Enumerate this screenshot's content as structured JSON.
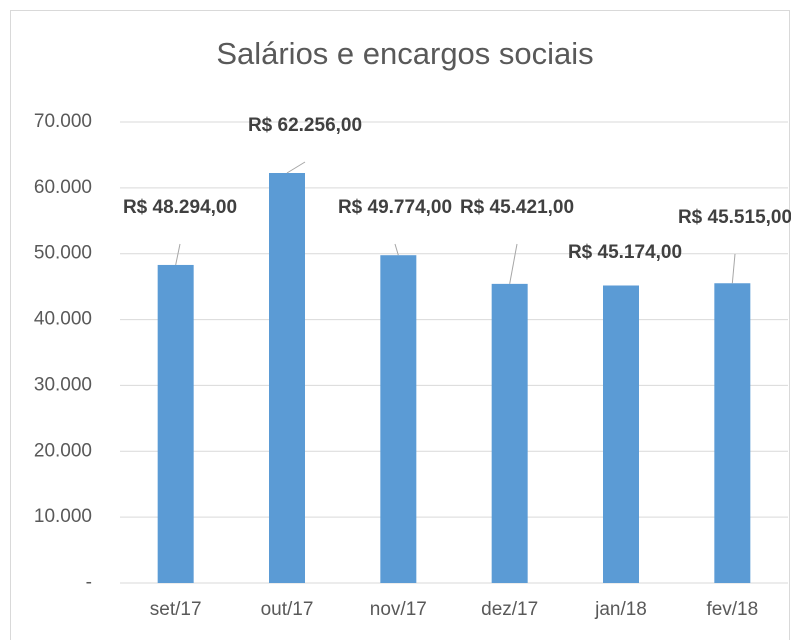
{
  "chart_data": {
    "type": "bar",
    "title": "Salários e encargos sociais",
    "categories": [
      "set/17",
      "out/17",
      "nov/17",
      "dez/17",
      "jan/18",
      "fev/18"
    ],
    "values": [
      48294,
      62256,
      49774,
      45421,
      45174,
      45515
    ],
    "value_labels": [
      "R$ 48.294,00",
      "R$ 62.256,00",
      "R$ 49.774,00",
      "R$ 45.421,00",
      "R$ 45.174,00",
      "R$ 45.515,00"
    ],
    "color": "#5b9bd5",
    "ylim": [
      0,
      70000
    ],
    "yticks": [
      {
        "value": 0,
        "label": "-"
      },
      {
        "value": 10000,
        "label": "10.000"
      },
      {
        "value": 20000,
        "label": "20.000"
      },
      {
        "value": 30000,
        "label": "30.000"
      },
      {
        "value": 40000,
        "label": "40.000"
      },
      {
        "value": 50000,
        "label": "50.000"
      },
      {
        "value": 60000,
        "label": "60.000"
      },
      {
        "value": 70000,
        "label": "70.000"
      }
    ],
    "grid": true
  }
}
